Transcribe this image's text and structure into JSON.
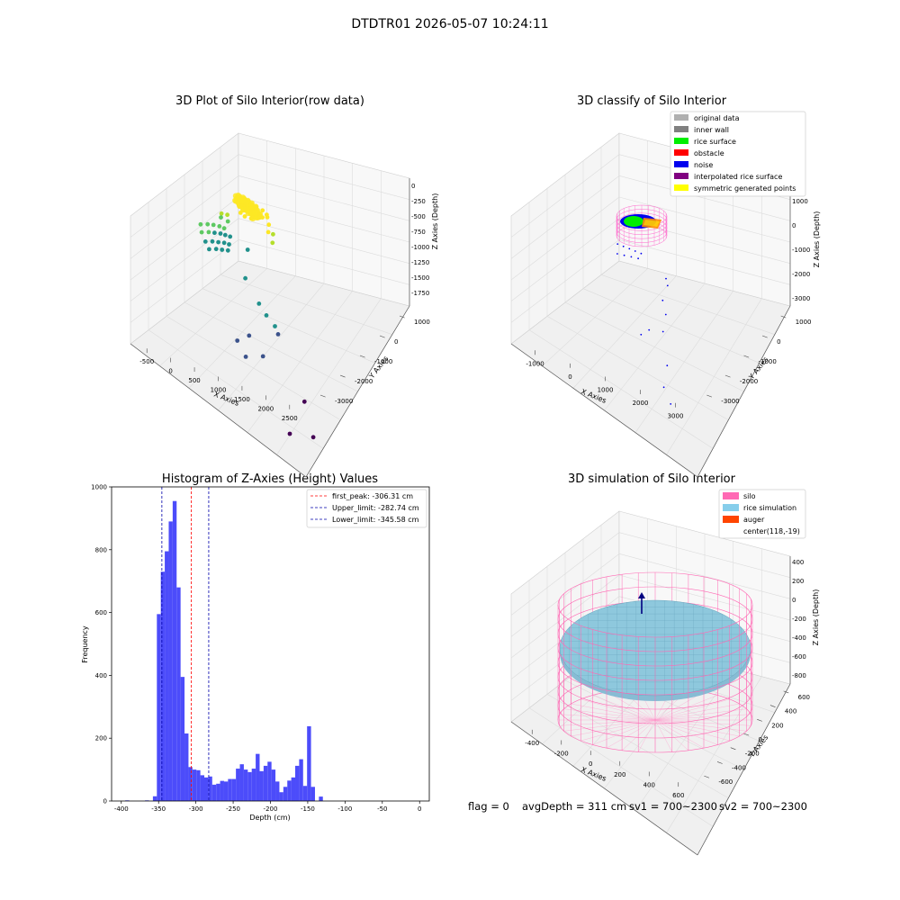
{
  "figure": {
    "suptitle": "DTDTR01 2026-05-07 10:24:11",
    "status": {
      "flag": "flag = 0",
      "avg_depth": "avgDepth = 311 cm",
      "sv1": "sv1 = 700~2300",
      "sv2": "sv2 = 700~2300"
    }
  },
  "chart_data": [
    {
      "type": "scatter",
      "panel": "top-left",
      "title": "3D Plot of Silo Interior(row data)",
      "xlabel": "X Axies",
      "ylabel": "Y Axies",
      "zlabel": "Z Axies (Depth)",
      "x_ticks": [
        "-500",
        "0",
        "500",
        "1000",
        "1500",
        "2000",
        "2500"
      ],
      "y_ticks": [
        "-3000",
        "-2000",
        "-1000",
        "0",
        "1000"
      ],
      "z_ticks": [
        "-1750",
        "-1500",
        "-1250",
        "-1000",
        "-750",
        "-500",
        "-250",
        "0"
      ],
      "xlim": [
        -600,
        2700
      ],
      "ylim": [
        -3400,
        1600
      ],
      "zlim": [
        -2050,
        150
      ],
      "colormap": "viridis",
      "points": [
        [
          100,
          0,
          -150
        ],
        [
          150,
          50,
          -130
        ],
        [
          200,
          -50,
          -120
        ],
        [
          250,
          100,
          -160
        ],
        [
          300,
          0,
          -100
        ],
        [
          350,
          -100,
          -140
        ],
        [
          400,
          50,
          -90
        ],
        [
          450,
          -50,
          -110
        ],
        [
          500,
          0,
          -80
        ],
        [
          550,
          100,
          -70
        ],
        [
          100,
          200,
          -170
        ],
        [
          200,
          250,
          -150
        ],
        [
          300,
          200,
          -120
        ],
        [
          400,
          250,
          -100
        ],
        [
          500,
          200,
          -90
        ],
        [
          150,
          -150,
          -200
        ],
        [
          250,
          -200,
          -180
        ],
        [
          350,
          -150,
          -160
        ],
        [
          600,
          50,
          -150
        ],
        [
          650,
          -100,
          -200
        ],
        [
          700,
          0,
          -230
        ],
        [
          750,
          -150,
          -300
        ],
        [
          -250,
          -50,
          -520
        ],
        [
          -200,
          100,
          -550
        ],
        [
          -150,
          0,
          -600
        ],
        [
          -300,
          50,
          -650
        ],
        [
          -500,
          -400,
          -780
        ],
        [
          -450,
          -200,
          -800
        ],
        [
          -400,
          -50,
          -820
        ],
        [
          -350,
          100,
          -850
        ],
        [
          -300,
          200,
          -880
        ],
        [
          -500,
          -350,
          -930
        ],
        [
          -450,
          -150,
          -950
        ],
        [
          -400,
          0,
          -970
        ],
        [
          -350,
          150,
          -990
        ],
        [
          -300,
          250,
          -1010
        ],
        [
          -250,
          350,
          -1030
        ],
        [
          -450,
          -300,
          -1070
        ],
        [
          -400,
          -100,
          -1090
        ],
        [
          -350,
          50,
          -1110
        ],
        [
          -300,
          200,
          -1130
        ],
        [
          -250,
          300,
          -1150
        ],
        [
          -400,
          -250,
          -1180
        ],
        [
          -350,
          -50,
          -1200
        ],
        [
          -300,
          100,
          -1220
        ],
        [
          -250,
          250,
          -1240
        ],
        [
          100,
          300,
          -1000
        ],
        [
          300,
          -300,
          -1180
        ],
        [
          700,
          -650,
          -1240
        ],
        [
          900,
          -800,
          -1260
        ],
        [
          1100,
          -900,
          -1280
        ],
        [
          1200,
          -1000,
          -1320
        ],
        [
          900,
          -1600,
          -1380
        ],
        [
          800,
          -1900,
          -1450
        ],
        [
          1200,
          -1700,
          -1500
        ],
        [
          1000,
          -2000,
          -1560
        ],
        [
          1900,
          -1500,
          -1850
        ],
        [
          2350,
          -2200,
          -1950
        ],
        [
          2050,
          -2550,
          -2000
        ]
      ]
    },
    {
      "type": "scatter",
      "panel": "top-right",
      "title": "3D classify of Silo Interior",
      "xlabel": "X Axies",
      "ylabel": "Y Axies",
      "zlabel": "Z Axies (Depth)",
      "x_ticks": [
        "-1000",
        "0",
        "1000",
        "2000",
        "3000"
      ],
      "y_ticks": [
        "-3000",
        "-2000",
        "-1000",
        "0",
        "1000"
      ],
      "z_ticks": [
        "-3000",
        "-2000",
        "-1000",
        "0",
        "1000"
      ],
      "xlim": [
        -1500,
        3500
      ],
      "ylim": [
        -3400,
        1600
      ],
      "zlim": [
        -3500,
        1200
      ],
      "legend": [
        {
          "label": "original data",
          "color": "#b0b0b0"
        },
        {
          "label": "inner wall",
          "color": "#808080"
        },
        {
          "label": "rice surface",
          "color": "#00ee00"
        },
        {
          "label": "obstacle",
          "color": "#ff0000"
        },
        {
          "label": "noise",
          "color": "#0000ee"
        },
        {
          "label": "interpolated rice surface",
          "color": "#800080"
        },
        {
          "label": "symmetric generated points",
          "color": "#ffff00"
        }
      ],
      "silo_wall": {
        "cx": 118,
        "cy": -19,
        "r": 700,
        "z_top": 200,
        "z_bottom": -500
      },
      "noise_points": [
        [
          -500,
          -200,
          -800
        ],
        [
          -400,
          -100,
          -850
        ],
        [
          -300,
          0,
          -900
        ],
        [
          -200,
          100,
          -950
        ],
        [
          -100,
          200,
          -1000
        ],
        [
          -450,
          -300,
          -1050
        ],
        [
          -350,
          -150,
          -1100
        ],
        [
          -250,
          0,
          -1150
        ],
        [
          -150,
          150,
          -1200
        ],
        [
          800,
          -200,
          -800
        ],
        [
          900,
          -300,
          -900
        ],
        [
          1000,
          -700,
          -1100
        ],
        [
          1200,
          -900,
          -1300
        ],
        [
          1100,
          -1500,
          -1600
        ],
        [
          1300,
          -1200,
          -1650
        ],
        [
          1000,
          -1700,
          -1750
        ],
        [
          1700,
          -1700,
          -2200
        ],
        [
          1900,
          -2200,
          -2500
        ],
        [
          2200,
          -2400,
          -2700
        ]
      ]
    },
    {
      "type": "bar",
      "panel": "bottom-left",
      "title": "Histogram of Z-Axies (Height) Values",
      "xlabel": "Depth (cm)",
      "ylabel": "Frequency",
      "xlim": [
        -413,
        13
      ],
      "ylim": [
        0,
        1000
      ],
      "x_ticks": [
        -400,
        -350,
        -300,
        -250,
        -200,
        -150,
        -100,
        -50,
        0
      ],
      "y_ticks": [
        0,
        200,
        400,
        600,
        800,
        1000
      ],
      "bar_color": "#4c4cfa",
      "bins": {
        "start": -400,
        "width": 5.3
      },
      "values": [
        0,
        2,
        0,
        0,
        0,
        0,
        2,
        0,
        15,
        595,
        730,
        795,
        890,
        955,
        680,
        395,
        215,
        108,
        100,
        98,
        82,
        75,
        78,
        52,
        55,
        64,
        62,
        70,
        70,
        103,
        117,
        100,
        92,
        103,
        150,
        95,
        112,
        125,
        100,
        62,
        28,
        45,
        65,
        75,
        112,
        133,
        48,
        238,
        45,
        0,
        14
      ],
      "vlines": [
        {
          "label": "first_peak: -306.31 cm",
          "x": -306.31,
          "color": "#ff0000"
        },
        {
          "label": "Upper_limit: -282.74 cm",
          "x": -282.74,
          "color": "#0000aa"
        },
        {
          "label": "Lower_limit: -345.58 cm",
          "x": -345.58,
          "color": "#0000aa"
        }
      ]
    },
    {
      "type": "scatter",
      "panel": "bottom-right",
      "title": "3D simulation of Silo Interior",
      "xlabel": "X Axies",
      "ylabel": "Y Axies",
      "zlabel": "Z Axies (Depth)",
      "x_ticks": [
        "-400",
        "-200",
        "0",
        "200",
        "400",
        "600"
      ],
      "y_ticks": [
        "-600",
        "-400",
        "-200",
        "0",
        "200",
        "400",
        "600"
      ],
      "z_ticks": [
        "-800",
        "-600",
        "-400",
        "-200",
        "0",
        "200",
        "400"
      ],
      "legend": [
        {
          "label": "silo",
          "color": "#ff69b4"
        },
        {
          "label": "rice simulation",
          "color": "#87ceeb"
        },
        {
          "label": "auger",
          "color": "#ff4500"
        },
        {
          "label": "center(118,-19)",
          "color": ""
        }
      ],
      "center": [
        118,
        -19
      ],
      "silo": {
        "radius": 700,
        "z_top": 400,
        "z_bottom": -1000
      },
      "rice_surface_z": -306
    }
  ]
}
